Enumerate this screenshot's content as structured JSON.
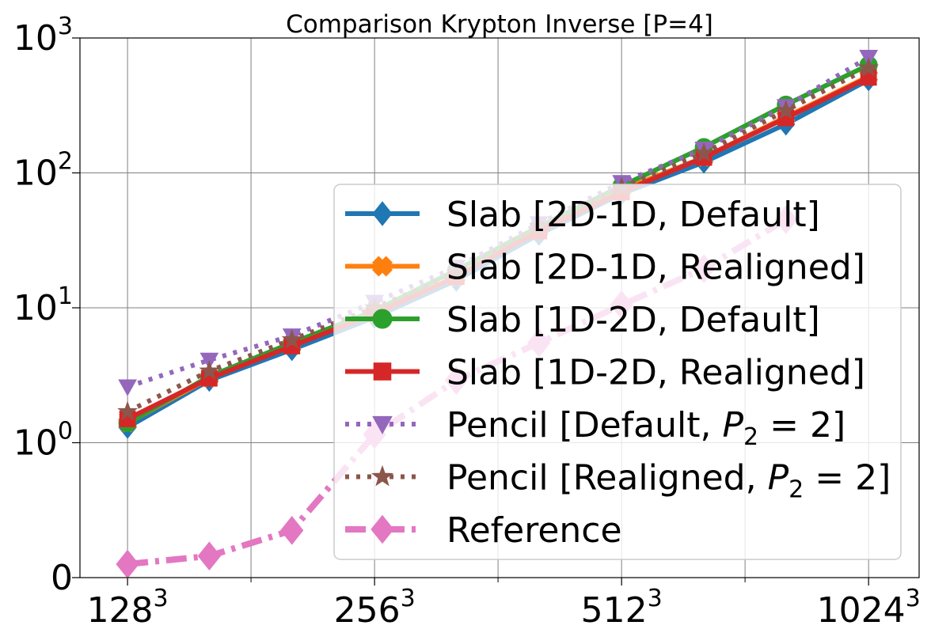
{
  "chart_data": {
    "type": "line",
    "title": "Comparison Krypton Inverse [P=4]",
    "xlabel": "",
    "ylabel": "",
    "x_scale": "log2",
    "y_scale": "symlog",
    "y_linthresh": 1,
    "x_ticks": [
      {
        "value": 128,
        "base": "128",
        "sup": "3"
      },
      {
        "value": 256,
        "base": "256",
        "sup": "3"
      },
      {
        "value": 512,
        "base": "512",
        "sup": "3"
      },
      {
        "value": 1024,
        "base": "1024",
        "sup": "3"
      }
    ],
    "x_minor_ticks": [
      181,
      362,
      724
    ],
    "y_ticks": [
      {
        "value": 0,
        "base": "0",
        "sup": ""
      },
      {
        "value": 1,
        "base": "10",
        "sup": "0"
      },
      {
        "value": 10,
        "base": "10",
        "sup": "1"
      },
      {
        "value": 100,
        "base": "10",
        "sup": "2"
      },
      {
        "value": 1000,
        "base": "10",
        "sup": "3"
      }
    ],
    "xlim": [
      112,
      1180
    ],
    "ylim": [
      0,
      1000
    ],
    "grid": true,
    "legend_position": "lower-right",
    "x": [
      128,
      161,
      203,
      256,
      322,
      406,
      512,
      645,
      812,
      1024
    ],
    "series": [
      {
        "name": "Slab [2D-1D, Default]",
        "color": "#1f77b4",
        "marker": "diamond",
        "dash": "solid",
        "values": [
          1.3,
          2.9,
          4.9,
          8.5,
          16,
          35,
          70,
          120,
          230,
          490
        ]
      },
      {
        "name": "Slab [2D-1D, Realigned]",
        "color": "#ff7f0e",
        "marker": "plus-filled",
        "dash": "solid",
        "values": [
          1.4,
          3.0,
          5.3,
          9.0,
          17,
          38,
          75,
          130,
          260,
          520
        ]
      },
      {
        "name": "Slab [1D-2D, Default]",
        "color": "#2ca02c",
        "marker": "circle",
        "dash": "solid",
        "values": [
          1.4,
          3.1,
          5.5,
          9.5,
          19,
          40,
          80,
          155,
          320,
          630
        ]
      },
      {
        "name": "Slab [1D-2D, Realigned]",
        "color": "#d62728",
        "marker": "square",
        "dash": "solid",
        "values": [
          1.5,
          3.0,
          5.2,
          9.0,
          17,
          37,
          72,
          130,
          255,
          510
        ]
      },
      {
        "name": "Pencil [Default, P2=2]",
        "legend_base": "Pencil [Default, ",
        "legend_var": "P",
        "legend_sub": "2",
        "legend_tail": " = 2]",
        "color": "#9467bd",
        "marker": "triangle-down",
        "dash": "dotted",
        "values": [
          2.6,
          4.1,
          6.2,
          11,
          20,
          42,
          85,
          150,
          310,
          720
        ]
      },
      {
        "name": "Pencil [Realigned, P2=2]",
        "legend_base": "Pencil [Realigned, ",
        "legend_var": "P",
        "legend_sub": "2",
        "legend_tail": " = 2]",
        "color": "#8c564b",
        "marker": "star",
        "dash": "dotted",
        "values": [
          1.7,
          3.4,
          5.8,
          10,
          18,
          40,
          78,
          140,
          290,
          600
        ]
      },
      {
        "name": "Reference",
        "color": "#e377c2",
        "marker": "diamond",
        "dash": "dashdot",
        "values": [
          0.1,
          0.16,
          0.35,
          1.15,
          2.9,
          5.5,
          10.5,
          19.5,
          45,
          null
        ]
      }
    ]
  }
}
